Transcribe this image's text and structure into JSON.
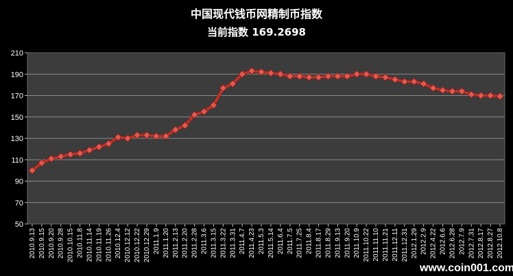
{
  "chart_data": {
    "type": "line",
    "title": "中国现代钱币网精制币指数",
    "subtitle": "当前指数 169.2698",
    "xlabel": "",
    "ylabel": "",
    "ylim": [
      50,
      210
    ],
    "yticks": [
      50,
      70,
      90,
      110,
      130,
      150,
      170,
      190,
      210
    ],
    "grid": "horizontal",
    "colors": {
      "background": "#000000",
      "plot_bg": "#3c3c3c",
      "line": "#c0392b",
      "marker": "#e05a4e",
      "grid": "#8a8a8a"
    },
    "x": [
      "2010.9.13",
      "2010.9.15",
      "2010.9.20",
      "2010.9.28",
      "2010.10.15",
      "2010.11.8",
      "2010.11.14",
      "2010.11.19",
      "2010.11.26",
      "2010.12.4",
      "2010.12.12",
      "2010.12.22",
      "2010.12.29",
      "2011.1.9",
      "2011.1.20",
      "2011.2.13",
      "2011.2.20",
      "2011.2.28",
      "2011.3.6",
      "2011.3.15",
      "2011.3.22",
      "2011.3.31",
      "2011.4.7",
      "2011.4.23",
      "2011.5.3",
      "2011.5.14",
      "2011.6.4",
      "2011.7.5",
      "2011.7.25",
      "2011.8.4",
      "2011.8.17",
      "2011.8.29",
      "2011.9.13",
      "2011.9.20",
      "2011.10.9",
      "2011.10.22",
      "2011.11.10",
      "2011.11.21",
      "2011.12.11",
      "2011.12.31",
      "2012.1.29",
      "2012.2.9",
      "2012.4.22",
      "2012.6.6",
      "2012.6.28",
      "2012.7.9",
      "2012.7.31",
      "2012.8.17",
      "2012.8.27",
      "2012.10.8"
    ],
    "series": [
      {
        "values": [
          100,
          107,
          111,
          113,
          115,
          116,
          119,
          122,
          125,
          131,
          130,
          133,
          133,
          132,
          132,
          138,
          142,
          152,
          155,
          161,
          177,
          181,
          190,
          193,
          192,
          191,
          190,
          188,
          188,
          187,
          187,
          188,
          188,
          188,
          190,
          190,
          188,
          187,
          185,
          183,
          183,
          181,
          177,
          175,
          174,
          174,
          171,
          170,
          170,
          169.27
        ]
      }
    ],
    "watermark": "www.coin001.com"
  }
}
